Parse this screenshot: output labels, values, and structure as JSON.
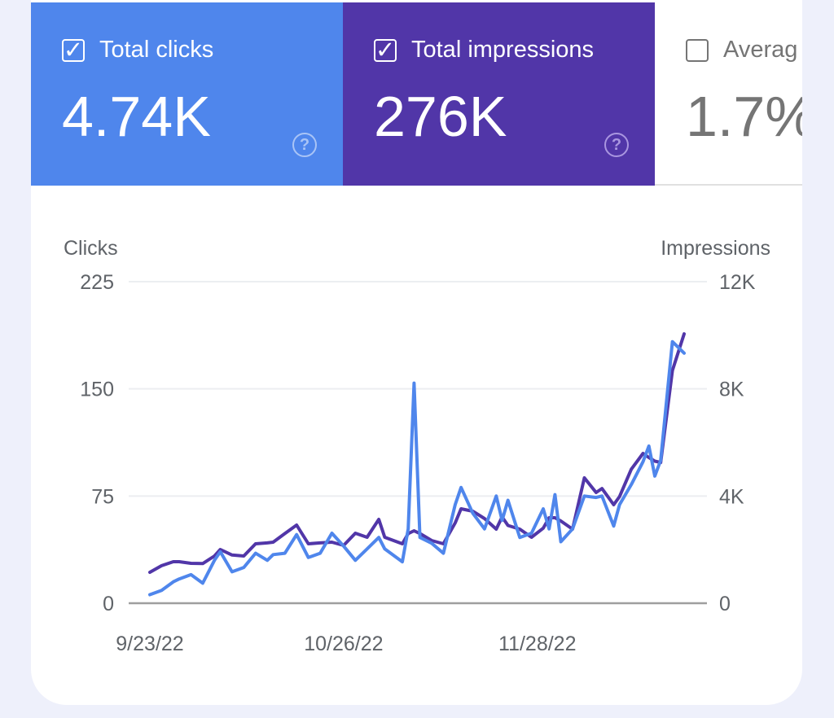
{
  "metrics": [
    {
      "label": "Total clicks",
      "value": "4.74K",
      "checked": true,
      "color": "#4f86ec"
    },
    {
      "label": "Total impressions",
      "value": "276K",
      "checked": true,
      "color": "#5136a8"
    },
    {
      "label": "Averag",
      "value": "1.7%",
      "checked": false
    }
  ],
  "icons": {
    "checkbox": "checkbox-icon",
    "help": "help-circle-icon"
  },
  "chart_data": {
    "type": "line",
    "y_left_label": "Clicks",
    "y_right_label": "Impressions",
    "y_left_ticks": [
      "0",
      "75",
      "150",
      "225"
    ],
    "y_left_range": [
      0,
      225
    ],
    "y_right_ticks": [
      "0",
      "4K",
      "8K",
      "12K"
    ],
    "y_right_range": [
      0,
      12000
    ],
    "x_ticks": [
      {
        "label": "9/23/22",
        "date": "2022-09-23"
      },
      {
        "label": "10/26/22",
        "date": "2022-10-26"
      },
      {
        "label": "11/28/22",
        "date": "2022-11-28"
      }
    ],
    "x_range": [
      "2022-09-23",
      "2022-12-23"
    ],
    "grid": true,
    "x": [
      "2022-09-23",
      "2022-09-25",
      "2022-09-27",
      "2022-09-28",
      "2022-09-30",
      "2022-10-02",
      "2022-10-04",
      "2022-10-05",
      "2022-10-07",
      "2022-10-09",
      "2022-10-11",
      "2022-10-13",
      "2022-10-14",
      "2022-10-16",
      "2022-10-18",
      "2022-10-20",
      "2022-10-22",
      "2022-10-24",
      "2022-10-26",
      "2022-10-28",
      "2022-10-30",
      "2022-11-01",
      "2022-11-02",
      "2022-11-05",
      "2022-11-06",
      "2022-11-07",
      "2022-11-08",
      "2022-11-10",
      "2022-11-12",
      "2022-11-14",
      "2022-11-15",
      "2022-11-17",
      "2022-11-19",
      "2022-11-21",
      "2022-11-22",
      "2022-11-23",
      "2022-11-25",
      "2022-11-27",
      "2022-11-29",
      "2022-11-30",
      "2022-12-01",
      "2022-12-02",
      "2022-12-04",
      "2022-12-06",
      "2022-12-08",
      "2022-12-09",
      "2022-12-11",
      "2022-12-12",
      "2022-12-14",
      "2022-12-16",
      "2022-12-17",
      "2022-12-18",
      "2022-12-19",
      "2022-12-21",
      "2022-12-23"
    ],
    "series": [
      {
        "name": "Clicks",
        "axis": "left",
        "color": "#4f86ec",
        "values": [
          6,
          9,
          15,
          17,
          20,
          14,
          30,
          36,
          22,
          25,
          35,
          30,
          34,
          35,
          48,
          32,
          35,
          49,
          40,
          30,
          38,
          46,
          38,
          29,
          52,
          154,
          46,
          42,
          35,
          69,
          81,
          63,
          52,
          75,
          58,
          72,
          46,
          49,
          66,
          52,
          76,
          43,
          52,
          75,
          74,
          75,
          54,
          69,
          83,
          99,
          110,
          89,
          100,
          183,
          175
        ]
      },
      {
        "name": "Impressions",
        "axis": "right",
        "color": "#5136a8",
        "values": [
          1154,
          1400,
          1549,
          1550,
          1488,
          1480,
          1762,
          2005,
          1800,
          1762,
          2217,
          2250,
          2278,
          2600,
          2916,
          2217,
          2250,
          2278,
          2156,
          2612,
          2460,
          3128,
          2460,
          2217,
          2600,
          2703,
          2600,
          2339,
          2217,
          3000,
          3523,
          3432,
          3159,
          2764,
          3220,
          2900,
          2764,
          2460,
          2800,
          3189,
          3189,
          3068,
          2764,
          4677,
          4131,
          4282,
          3675,
          3979,
          5000,
          5589,
          5437,
          5300,
          5254,
          8687,
          10053
        ]
      }
    ]
  }
}
